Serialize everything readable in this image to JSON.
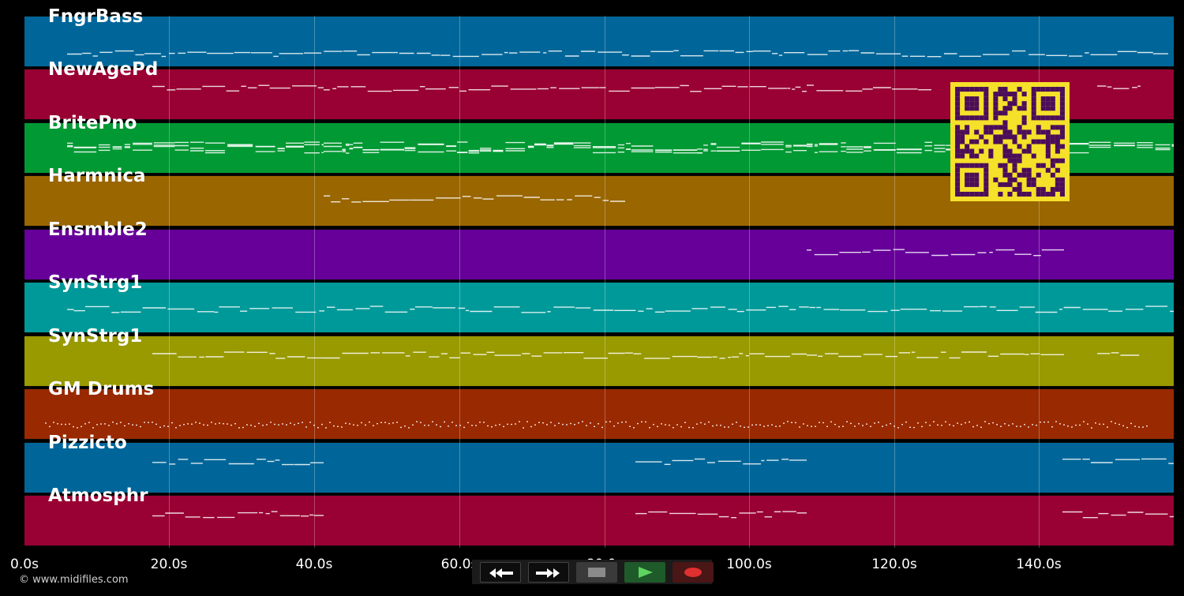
{
  "tracks": [
    {
      "name": "FngrBass",
      "color": "#006699"
    },
    {
      "name": "NewAgePd",
      "color": "#990033"
    },
    {
      "name": "BritePno",
      "color": "#009933"
    },
    {
      "name": "Harmnica",
      "color": "#996600"
    },
    {
      "name": "Ensmble2",
      "color": "#660099"
    },
    {
      "name": "SynStrg1",
      "color": "#009999"
    },
    {
      "name": "SynStrg1",
      "color": "#999900"
    },
    {
      "name": "GM Drums",
      "color": "#992900"
    },
    {
      "name": "Pizzicto",
      "color": "#006699"
    },
    {
      "name": "Atmosphr",
      "color": "#990033"
    }
  ],
  "timeline": {
    "ticks": [
      "0.0s",
      "20.0s",
      "40.0s",
      "60.0s",
      "80.0s",
      "100.0s",
      "120.0s",
      "140.0s"
    ]
  },
  "transport": {
    "rewind_icon": "rewind-icon",
    "fast_forward_icon": "fast-forward-icon",
    "stop_icon": "stop-icon",
    "play_icon": "play-icon",
    "record_icon": "record-icon",
    "play_color": "#5fd35f",
    "record_color": "#e03030"
  },
  "qr_code": {
    "colors": {
      "background": "#f5e02a",
      "modules": "#4a0d5a"
    }
  },
  "footer": {
    "copyright": "© www.midifiles.com"
  }
}
